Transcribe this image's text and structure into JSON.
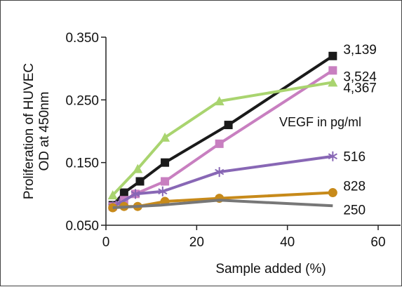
{
  "chart_data": {
    "type": "line",
    "title": "",
    "xlabel": "Sample added (%)",
    "ylabel": [
      "Proliferation of HUVEC",
      "OD at 450nm"
    ],
    "xlim": [
      0,
      60
    ],
    "ylim": [
      0.05,
      0.35
    ],
    "x_ticks": [
      0,
      20,
      40,
      60
    ],
    "x_tick_labels": [
      "0",
      "20",
      "40",
      "60"
    ],
    "y_ticks": [
      0.05,
      0.15,
      0.25,
      0.35
    ],
    "y_tick_labels": [
      "0.050",
      "0.150",
      "0.250",
      "0.350"
    ],
    "grid": false,
    "annotation": "VEGF in pg/ml",
    "series": [
      {
        "name": "3,139",
        "color": "#1a1a1a",
        "marker": "square",
        "x": [
          1.5,
          4,
          7.5,
          13,
          27,
          50
        ],
        "y": [
          0.082,
          0.102,
          0.12,
          0.15,
          0.21,
          0.32
        ]
      },
      {
        "name": "3,524",
        "color": "#c87fc0",
        "marker": "square",
        "x": [
          1.5,
          4,
          6.5,
          13,
          25,
          50
        ],
        "y": [
          0.08,
          0.09,
          0.1,
          0.12,
          0.18,
          0.297
        ]
      },
      {
        "name": "4,367",
        "color": "#a9d46f",
        "marker": "triangle",
        "x": [
          1.5,
          7,
          13,
          25,
          50
        ],
        "y": [
          0.098,
          0.14,
          0.19,
          0.248,
          0.278
        ]
      },
      {
        "name": "516",
        "color": "#8867b5",
        "marker": "star",
        "x": [
          1.5,
          3,
          6.5,
          12.5,
          25,
          50
        ],
        "y": [
          0.08,
          0.085,
          0.1,
          0.104,
          0.135,
          0.16
        ]
      },
      {
        "name": "828",
        "color": "#c78a1a",
        "marker": "circle",
        "x": [
          1.5,
          4,
          7,
          13,
          25,
          50
        ],
        "y": [
          0.078,
          0.08,
          0.08,
          0.088,
          0.093,
          0.102
        ]
      },
      {
        "name": "250",
        "color": "#777777",
        "marker": "none",
        "x": [
          1.5,
          12,
          25,
          50
        ],
        "y": [
          0.078,
          0.082,
          0.09,
          0.081
        ]
      }
    ]
  }
}
